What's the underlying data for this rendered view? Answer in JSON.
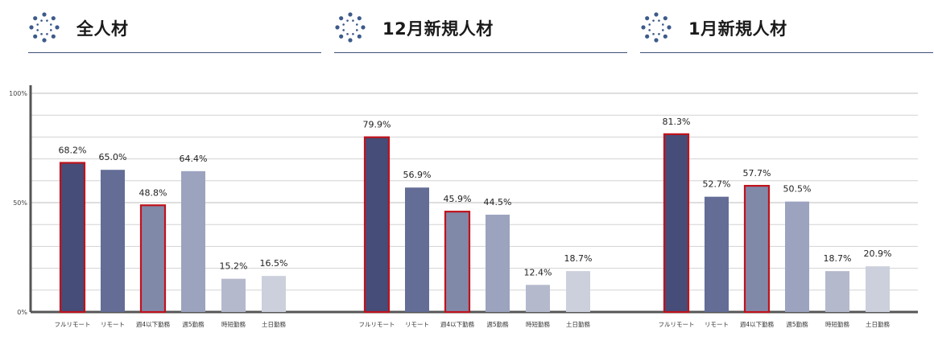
{
  "sections": [
    {
      "title": "全人材"
    },
    {
      "title": "12月新規人材"
    },
    {
      "title": "1月新規人材"
    }
  ],
  "icons": {
    "header": "dots-circle-icon"
  },
  "colors": {
    "highlight_border": "#c0121b",
    "grid": "#d3d3d3",
    "axis": "#555555",
    "header_rule": "#3d4f7c",
    "icon": "#3d5a8a"
  },
  "chart_data": {
    "type": "bar",
    "ylim": [
      0,
      100
    ],
    "ytick_labels": [
      "0%",
      "50%",
      "100%"
    ],
    "grid": true,
    "categories": [
      "フルリモート",
      "リモート",
      "週4以下勤務",
      "週5勤務",
      "時短勤務",
      "土日勤務"
    ],
    "category_colors": [
      "#454d78",
      "#636d96",
      "#8189a9",
      "#9ca3bf",
      "#b5b9cc",
      "#ccd0dd"
    ],
    "highlighted_categories": [
      "フルリモート",
      "週4以下勤務"
    ],
    "groups": [
      {
        "name": "全人材",
        "values": [
          68.2,
          65.0,
          48.8,
          64.4,
          15.2,
          16.5
        ],
        "labels": [
          "68.2%",
          "65.0%",
          "48.8%",
          "64.4%",
          "15.2%",
          "16.5%"
        ]
      },
      {
        "name": "12月新規人材",
        "values": [
          79.9,
          56.9,
          45.9,
          44.5,
          12.4,
          18.7
        ],
        "labels": [
          "79.9%",
          "56.9%",
          "45.9%",
          "44.5%",
          "12.4%",
          "18.7%"
        ]
      },
      {
        "name": "1月新規人材",
        "values": [
          81.3,
          52.7,
          57.7,
          50.5,
          18.7,
          20.9
        ],
        "labels": [
          "81.3%",
          "52.7%",
          "57.7%",
          "50.5%",
          "18.7%",
          "20.9%"
        ]
      }
    ]
  }
}
